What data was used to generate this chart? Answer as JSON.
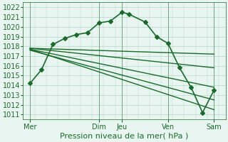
{
  "bg_color": "#e8f5f0",
  "plot_bg_color": "#e8f5f0",
  "grid_color": "#b0d8c8",
  "line_color": "#1a6b2a",
  "ylim": [
    1010.5,
    1022.5
  ],
  "yticks": [
    1011,
    1012,
    1013,
    1014,
    1015,
    1016,
    1017,
    1018,
    1019,
    1020,
    1021,
    1022
  ],
  "xlabel": "Pression niveau de la mer( hPa )",
  "xlabel_fontsize": 8,
  "xtick_labels": [
    "Mer",
    "Dim",
    "Jeu",
    "Ven",
    "Sam"
  ],
  "xtick_positions": [
    0,
    3,
    4,
    6,
    8
  ],
  "vlines": [
    0,
    3,
    4,
    6,
    8
  ],
  "lines": [
    {
      "x": [
        0,
        0.5,
        1.0,
        1.5,
        2.0,
        2.5,
        3.0,
        3.5,
        4.0,
        4.3,
        5.0,
        5.5,
        6.0,
        6.5,
        7.0,
        7.5,
        8.0
      ],
      "y": [
        1014.2,
        1015.6,
        1018.2,
        1018.8,
        1019.2,
        1019.4,
        1020.4,
        1020.6,
        1021.5,
        1021.3,
        1020.5,
        1019.0,
        1018.3,
        1015.8,
        1013.8,
        1011.2,
        1013.5
      ],
      "marker": "D",
      "markersize": 3.0,
      "linewidth": 1.2
    },
    {
      "x": [
        0,
        8.0
      ],
      "y": [
        1017.8,
        1017.2
      ],
      "marker": null,
      "linewidth": 1.0
    },
    {
      "x": [
        0,
        8.0
      ],
      "y": [
        1017.8,
        1015.8
      ],
      "marker": null,
      "linewidth": 1.0
    },
    {
      "x": [
        0,
        8.0
      ],
      "y": [
        1017.7,
        1013.8
      ],
      "marker": null,
      "linewidth": 1.0
    },
    {
      "x": [
        0,
        8.0
      ],
      "y": [
        1017.7,
        1011.5
      ],
      "marker": null,
      "linewidth": 1.0
    },
    {
      "x": [
        0,
        8.0
      ],
      "y": [
        1017.6,
        1012.5
      ],
      "marker": null,
      "linewidth": 1.0
    }
  ],
  "tick_fontsize": 7,
  "figsize": [
    3.2,
    2.0
  ],
  "dpi": 100
}
